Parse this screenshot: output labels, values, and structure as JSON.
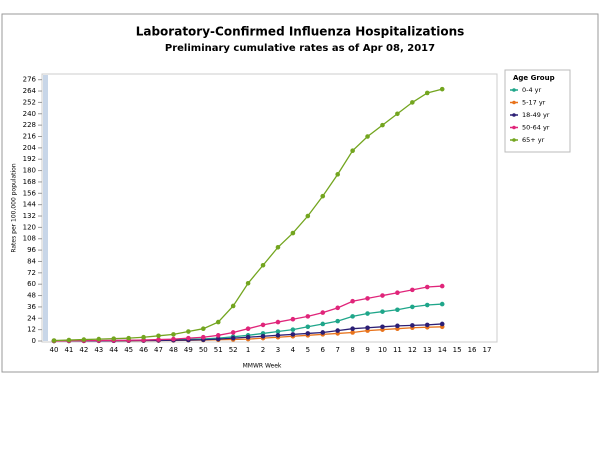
{
  "chart_data": {
    "type": "line",
    "title": "Laboratory-Confirmed Influenza Hospitalizations",
    "subtitle": "Preliminary cumulative rates as of Apr 08, 2017",
    "x_label": "MMWR Week",
    "y_label": "Rates per 100,000 population",
    "legend_title": "Age Group",
    "legend_position": "right",
    "categories": [
      "40",
      "41",
      "42",
      "43",
      "44",
      "45",
      "46",
      "47",
      "48",
      "49",
      "50",
      "51",
      "52",
      "1",
      "2",
      "3",
      "4",
      "5",
      "6",
      "7",
      "8",
      "9",
      "10",
      "11",
      "12",
      "13",
      "14",
      "15",
      "16",
      "17"
    ],
    "ylim": [
      0,
      282
    ],
    "yticks": [
      0,
      12,
      24,
      36,
      48,
      60,
      72,
      84,
      96,
      108,
      120,
      132,
      144,
      156,
      168,
      180,
      192,
      204,
      216,
      228,
      240,
      252,
      264,
      276
    ],
    "series": [
      {
        "name": "0-4 yr",
        "color": "#1fa68a",
        "values": [
          0.1,
          0.2,
          0.3,
          0.4,
          0.5,
          0.6,
          0.8,
          1,
          1.3,
          1.7,
          2.2,
          3,
          4.5,
          6,
          8,
          10,
          12,
          15,
          18,
          21,
          26,
          29,
          31,
          33,
          36,
          38,
          39,
          null,
          null,
          null
        ]
      },
      {
        "name": "5-17 yr",
        "color": "#e8731c",
        "values": [
          0,
          0.1,
          0.1,
          0.2,
          0.2,
          0.3,
          0.4,
          0.5,
          0.6,
          0.8,
          1,
          1.3,
          1.6,
          2,
          3,
          4,
          5,
          6,
          7,
          8,
          9,
          11,
          12,
          13,
          14,
          14.5,
          15,
          null,
          null,
          null
        ]
      },
      {
        "name": "18-49 yr",
        "color": "#2c1f75",
        "values": [
          0.1,
          0.1,
          0.2,
          0.2,
          0.3,
          0.4,
          0.5,
          0.6,
          0.8,
          1,
          1.3,
          2,
          3,
          4,
          5,
          6,
          7,
          8,
          9,
          11,
          13,
          14,
          15,
          16,
          16.5,
          17,
          18,
          null,
          null,
          null
        ]
      },
      {
        "name": "50-64 yr",
        "color": "#e0257a",
        "values": [
          0.2,
          0.3,
          0.4,
          0.5,
          0.6,
          0.8,
          1,
          1.5,
          2,
          3,
          4,
          6,
          9,
          13,
          17,
          20,
          23,
          26,
          30,
          35,
          42,
          45,
          48,
          51,
          54,
          57,
          58,
          null,
          null,
          null
        ]
      },
      {
        "name": "65+ yr",
        "color": "#73a51f",
        "values": [
          0.5,
          1,
          1.5,
          2,
          2.5,
          3,
          4,
          5.5,
          7,
          10,
          13,
          20,
          37,
          61,
          80,
          99,
          114,
          132,
          153,
          176,
          201,
          216,
          228,
          240,
          252,
          262,
          266,
          null,
          null,
          null
        ]
      }
    ]
  }
}
